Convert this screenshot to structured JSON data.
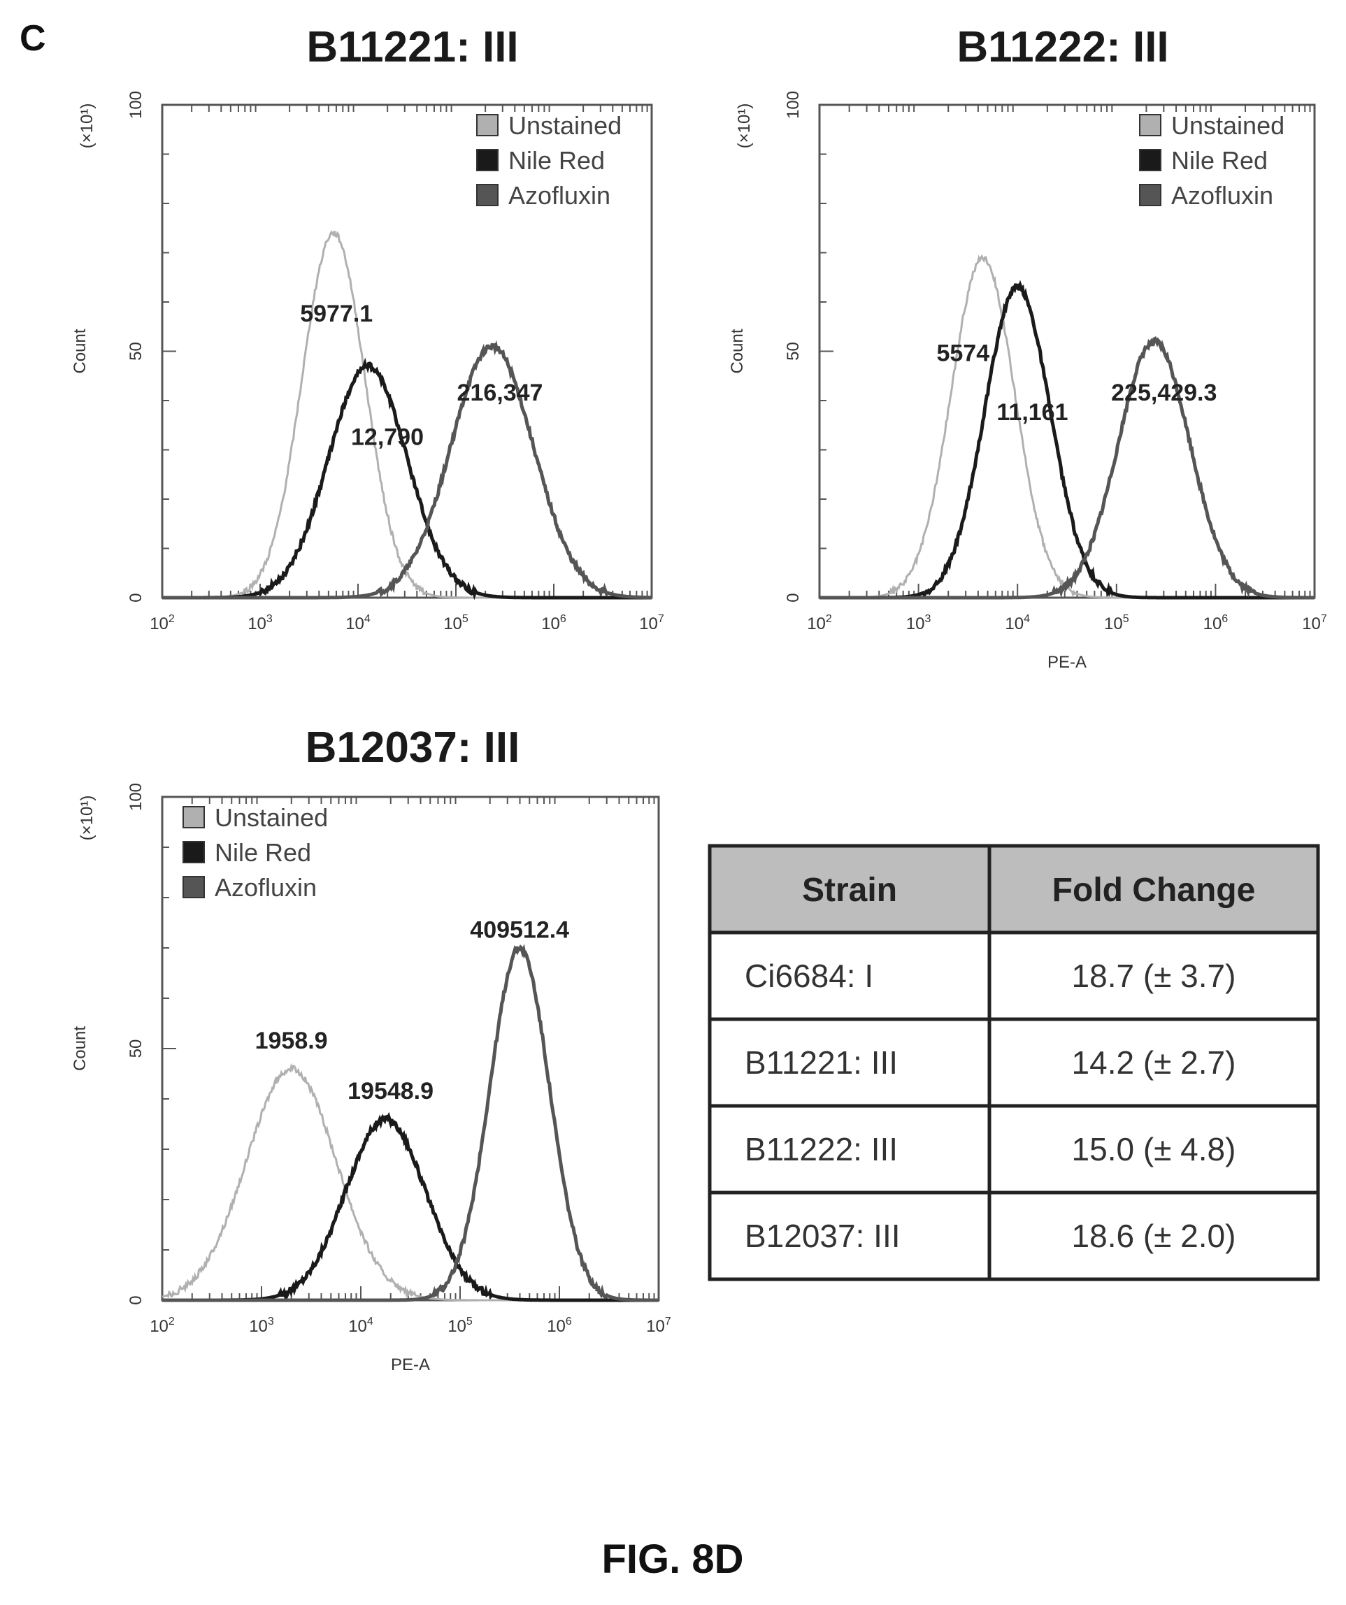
{
  "panel_letter": "C",
  "figure_caption": "FIG. 8D",
  "colors": {
    "unstained": "#b0b0b0",
    "nile_red": "#1a1a1a",
    "azofluxin": "#555555"
  },
  "chart_data": [
    {
      "type": "line",
      "title": "B11221: III",
      "xlabel": "",
      "ylabel": "Count",
      "yscale_label": "(×10¹)",
      "xscale": "log",
      "xlim_log10": [
        2,
        7
      ],
      "ylim": [
        0,
        100
      ],
      "yticks": [
        "0",
        "50",
        "100"
      ],
      "xticks": [
        {
          "base": "10",
          "exp": "2"
        },
        {
          "base": "10",
          "exp": "3"
        },
        {
          "base": "10",
          "exp": "4"
        },
        {
          "base": "10",
          "exp": "5"
        },
        {
          "base": "10",
          "exp": "6"
        },
        {
          "base": "10",
          "exp": "7"
        }
      ],
      "legend": [
        "Unstained",
        "Nile Red",
        "Azofluxin"
      ],
      "legend_position": "top-right",
      "series": [
        {
          "name": "Unstained",
          "peak_log10": 3.75,
          "peak_count": 74,
          "width": 0.32
        },
        {
          "name": "Nile Red",
          "peak_log10": 4.1,
          "peak_count": 47,
          "width": 0.4
        },
        {
          "name": "Azofluxin",
          "peak_log10": 5.37,
          "peak_count": 51,
          "width": 0.42
        }
      ],
      "annotations": [
        {
          "text": "5977.1",
          "x_log10": 3.78,
          "y": 56
        },
        {
          "text": "12,790",
          "x_log10": 4.3,
          "y": 31
        },
        {
          "text": "216,347",
          "x_log10": 5.45,
          "y": 40
        }
      ]
    },
    {
      "type": "line",
      "title": "B11222: III",
      "xlabel": "PE-A",
      "ylabel": "Count",
      "yscale_label": "(×10¹)",
      "xscale": "log",
      "xlim_log10": [
        2,
        7
      ],
      "ylim": [
        0,
        100
      ],
      "yticks": [
        "0",
        "50",
        "100"
      ],
      "xticks": [
        {
          "base": "10",
          "exp": "2"
        },
        {
          "base": "10",
          "exp": "3"
        },
        {
          "base": "10",
          "exp": "4"
        },
        {
          "base": "10",
          "exp": "5"
        },
        {
          "base": "10",
          "exp": "6"
        },
        {
          "base": "10",
          "exp": "7"
        }
      ],
      "legend": [
        "Unstained",
        "Nile Red",
        "Azofluxin"
      ],
      "legend_position": "top-right",
      "series": [
        {
          "name": "Unstained",
          "peak_log10": 3.65,
          "peak_count": 69,
          "width": 0.32
        },
        {
          "name": "Nile Red",
          "peak_log10": 4.0,
          "peak_count": 63,
          "width": 0.33
        },
        {
          "name": "Azofluxin",
          "peak_log10": 5.38,
          "peak_count": 52,
          "width": 0.36
        }
      ],
      "annotations": [
        {
          "text": "5574",
          "x_log10": 3.45,
          "y": 48
        },
        {
          "text": "11,161",
          "x_log10": 4.15,
          "y": 36
        },
        {
          "text": "225,429.3",
          "x_log10": 5.48,
          "y": 40
        }
      ]
    },
    {
      "type": "line",
      "title": "B12037: III",
      "xlabel": "PE-A",
      "ylabel": "Count",
      "yscale_label": "(×10¹)",
      "xscale": "log",
      "xlim_log10": [
        2,
        7
      ],
      "ylim": [
        0,
        100
      ],
      "yticks": [
        "0",
        "50",
        "100"
      ],
      "xticks": [
        {
          "base": "10",
          "exp": "2"
        },
        {
          "base": "10",
          "exp": "3"
        },
        {
          "base": "10",
          "exp": "4"
        },
        {
          "base": "10",
          "exp": "5"
        },
        {
          "base": "10",
          "exp": "6"
        },
        {
          "base": "10",
          "exp": "7"
        }
      ],
      "legend": [
        "Unstained",
        "Nile Red",
        "Azofluxin"
      ],
      "legend_position": "top-left",
      "series": [
        {
          "name": "Unstained",
          "peak_log10": 3.3,
          "peak_count": 46,
          "width": 0.45
        },
        {
          "name": "Nile Red",
          "peak_log10": 4.25,
          "peak_count": 36,
          "width": 0.4
        },
        {
          "name": "Azofluxin",
          "peak_log10": 5.6,
          "peak_count": 70,
          "width": 0.3
        }
      ],
      "annotations": [
        {
          "text": "1958.9",
          "x_log10": 3.3,
          "y": 50
        },
        {
          "text": "19548.9",
          "x_log10": 4.3,
          "y": 40
        },
        {
          "text": "409512.4",
          "x_log10": 5.6,
          "y": 72
        }
      ]
    },
    {
      "type": "table",
      "columns": [
        "Strain",
        "Fold Change"
      ],
      "rows": [
        [
          "Ci6684: I",
          "18.7 (± 3.7)"
        ],
        [
          "B11221: III",
          "14.2 (± 2.7)"
        ],
        [
          "B11222: III",
          "15.0 (± 4.8)"
        ],
        [
          "B12037: III",
          "18.6 (± 2.0)"
        ]
      ]
    }
  ]
}
